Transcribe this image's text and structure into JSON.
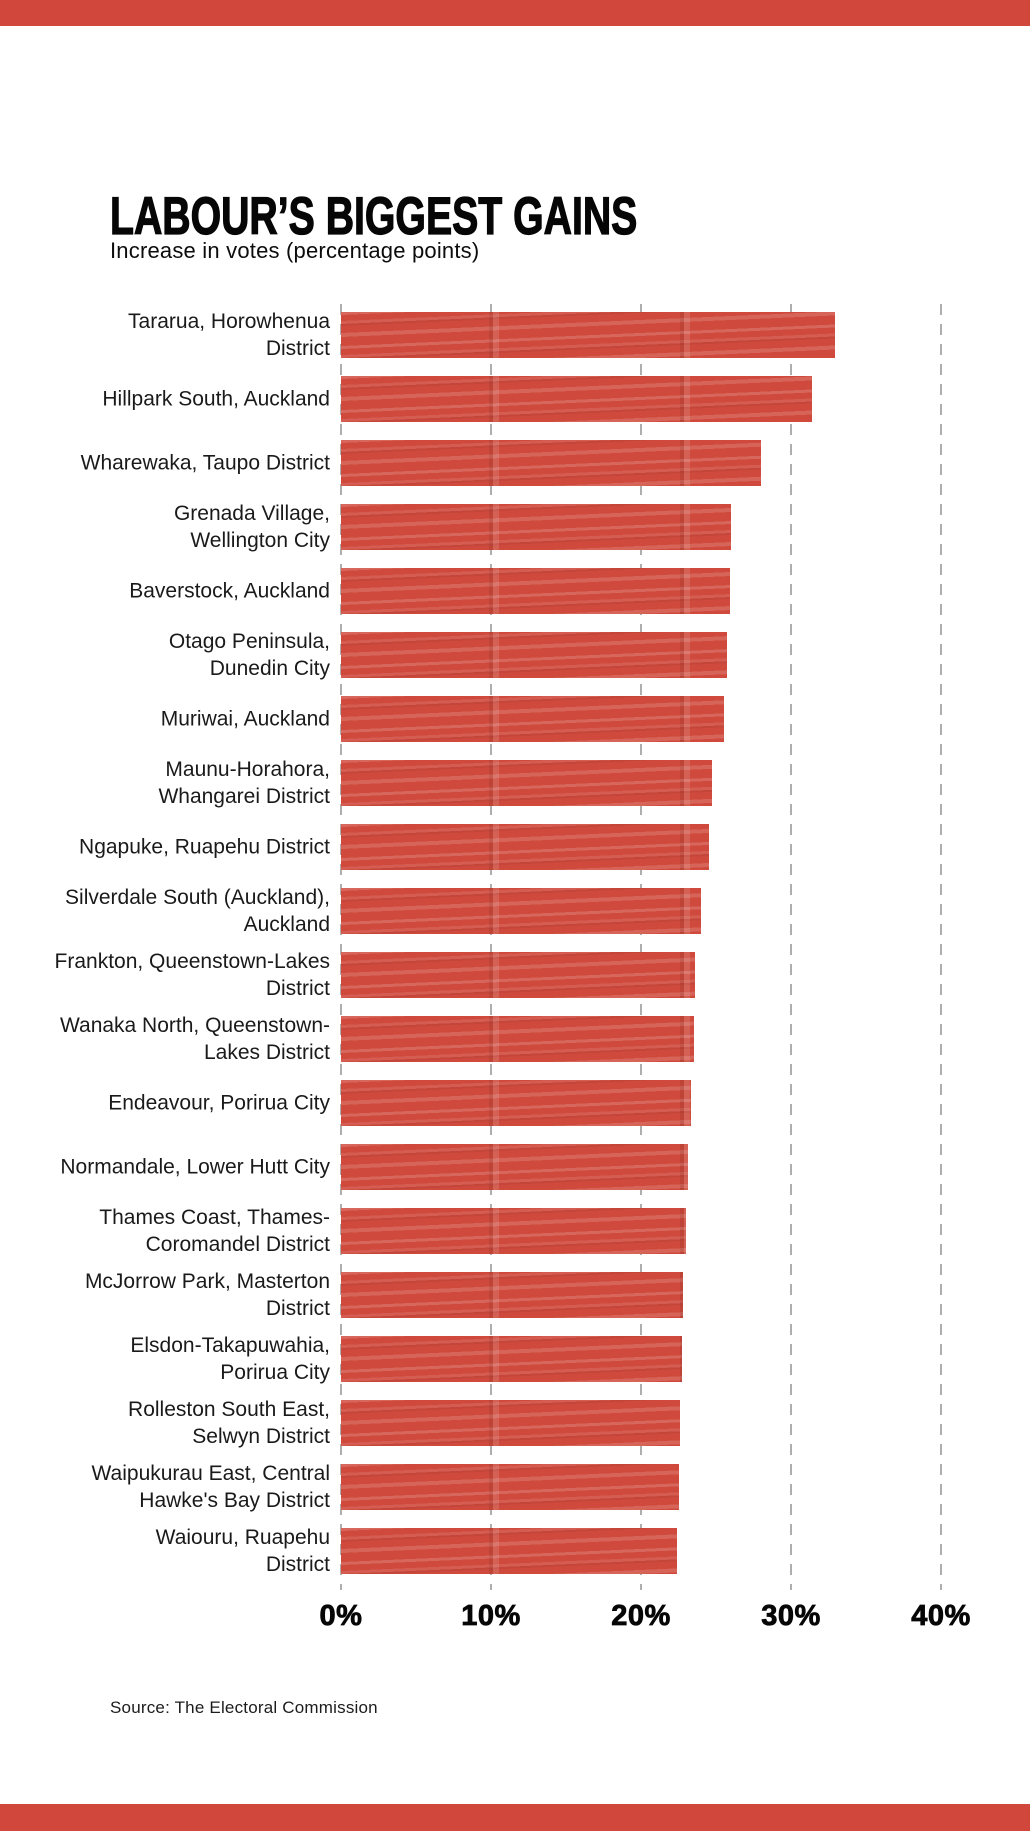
{
  "banner_color": "#d2473b",
  "header": {
    "title": "LABOUR’S BIGGEST GAINS",
    "subtitle": "Increase in votes (percentage points)"
  },
  "source": "Source: The Electoral Commission",
  "chart_data": {
    "type": "bar",
    "orientation": "horizontal",
    "title": "LABOUR’S BIGGEST GAINS",
    "subtitle": "Increase in votes (percentage points)",
    "xlabel": "",
    "ylabel": "",
    "xlim": [
      0,
      40
    ],
    "x_tick_labels": [
      "0%",
      "10%",
      "20%",
      "30%",
      "40%"
    ],
    "x_tick_values": [
      0,
      10,
      20,
      30,
      40
    ],
    "grid": "vertical dashed",
    "gridline_color": "#aeaeae",
    "bar_color": "#cf4a3d",
    "legend": "none",
    "categories": [
      "Tararua, Horowhenua District",
      "Hillpark South, Auckland",
      "Wharewaka, Taupo District",
      "Grenada Village, Wellington City",
      "Baverstock, Auckland",
      "Otago Peninsula, Dunedin City",
      "Muriwai, Auckland",
      "Maunu-Horahora, Whangarei District",
      "Ngapuke, Ruapehu District",
      "Silverdale South (Auckland), Auckland",
      "Frankton, Queenstown-Lakes District",
      "Wanaka North, Queenstown-Lakes District",
      "Endeavour, Porirua City",
      "Normandale, Lower Hutt City",
      "Thames Coast, Thames-Coromandel District",
      "McJorrow Park, Masterton District",
      "Elsdon-Takapuwahia, Porirua City",
      "Rolleston South East, Selwyn District",
      "Waipukurau East, Central Hawke's Bay District",
      "Waiouru, Ruapehu District"
    ],
    "categories_display": [
      "Tararua, Horowhenua\nDistrict",
      "Hillpark South, Auckland",
      "Wharewaka, Taupo District",
      "Grenada Village,\nWellington City",
      "Baverstock, Auckland",
      "Otago Peninsula,\nDunedin City",
      "Muriwai, Auckland",
      "Maunu-Horahora,\nWhangarei District",
      "Ngapuke, Ruapehu District",
      "Silverdale South (Auckland),\nAuckland",
      "Frankton, Queenstown-Lakes\nDistrict",
      "Wanaka North, Queenstown-\nLakes District",
      "Endeavour, Porirua City",
      "Normandale, Lower Hutt City",
      "Thames Coast, Thames-\nCoromandel District",
      "McJorrow Park, Masterton\nDistrict",
      "Elsdon-Takapuwahia,\nPorirua City",
      "Rolleston South East,\nSelwyn District",
      "Waipukurau East, Central\nHawke's Bay District",
      "Waiouru, Ruapehu\nDistrict"
    ],
    "values": [
      32.9,
      31.4,
      28.0,
      26.0,
      25.9,
      25.7,
      25.5,
      24.7,
      24.5,
      24.0,
      23.6,
      23.5,
      23.3,
      23.1,
      23.0,
      22.8,
      22.7,
      22.6,
      22.5,
      22.4
    ],
    "source": "Source: The Electoral Commission"
  }
}
